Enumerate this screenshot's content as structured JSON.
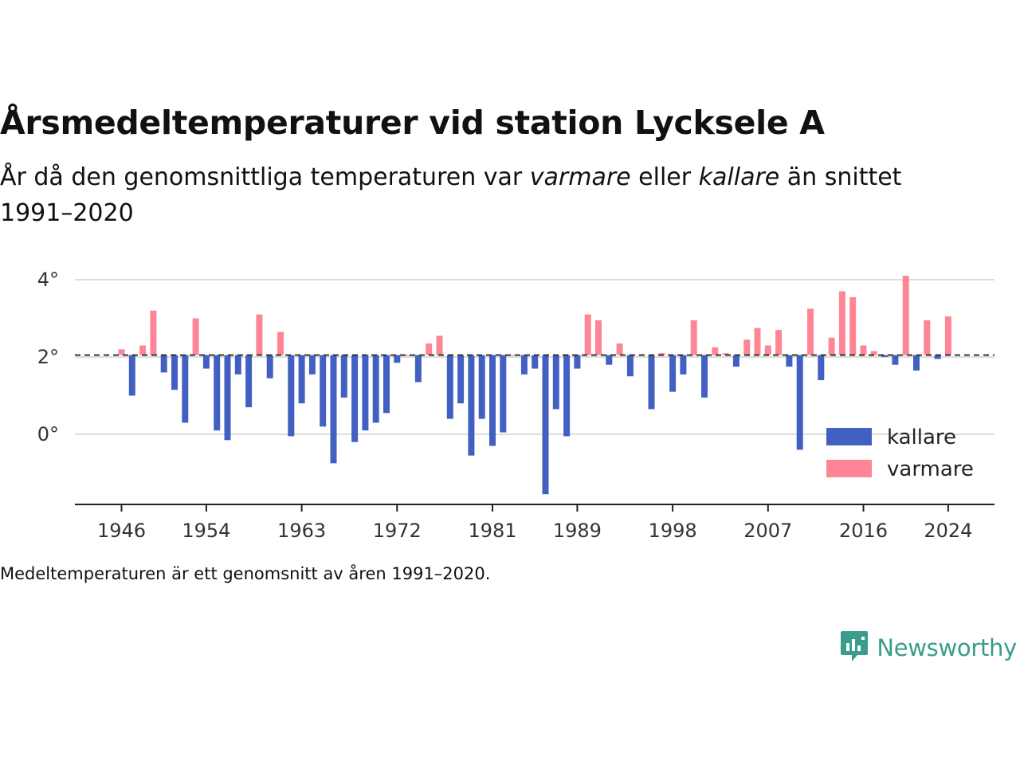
{
  "title": "Årsmedeltemperaturer vid station Lycksele A",
  "subtitle": {
    "part1": "År då den genomsnittliga temperaturen var ",
    "warm_word": "varmare",
    "part2": " eller ",
    "cold_word": "kallare",
    "part3": " än snittet 1991–2020"
  },
  "footnote": "Medeltemperaturen är ett genomsnitt av åren 1991–2020.",
  "brand": {
    "name": "Newsworthy",
    "icon": "newsworthy-logo-icon"
  },
  "colors": {
    "cold": "#4260c2",
    "warm": "#fe8595",
    "reference": "#333333",
    "grid": "#dddddd",
    "brand": "#3a9c8c"
  },
  "chart_data": {
    "type": "bar",
    "x_ticks": [
      "1946",
      "1954",
      "1963",
      "1972",
      "1981",
      "1989",
      "1998",
      "2007",
      "2016",
      "2024"
    ],
    "y_ticks": [
      "0°",
      "2°",
      "4°"
    ],
    "ylim": [
      -1.8,
      4.2
    ],
    "reference_value": 2.05,
    "legend": [
      {
        "label": "kallare",
        "series": "cold"
      },
      {
        "label": "varmare",
        "series": "warm"
      }
    ],
    "legend_position": "bottom-right",
    "x": [
      1946,
      1947,
      1948,
      1949,
      1950,
      1951,
      1952,
      1953,
      1954,
      1955,
      1956,
      1957,
      1958,
      1959,
      1960,
      1961,
      1962,
      1963,
      1964,
      1965,
      1966,
      1967,
      1968,
      1969,
      1970,
      1971,
      1972,
      1973,
      1974,
      1975,
      1976,
      1977,
      1978,
      1979,
      1980,
      1981,
      1982,
      1983,
      1984,
      1985,
      1986,
      1987,
      1988,
      1989,
      1990,
      1991,
      1992,
      1993,
      1994,
      1995,
      1996,
      1997,
      1998,
      1999,
      2000,
      2001,
      2002,
      2003,
      2004,
      2005,
      2006,
      2007,
      2008,
      2009,
      2010,
      2011,
      2012,
      2013,
      2014,
      2015,
      2016,
      2017,
      2018,
      2019,
      2020,
      2021,
      2022,
      2023,
      2024
    ],
    "values": [
      2.2,
      1.0,
      2.3,
      3.2,
      1.6,
      1.15,
      0.3,
      3.0,
      1.7,
      0.1,
      -0.15,
      1.55,
      0.7,
      3.1,
      1.45,
      2.65,
      -0.05,
      0.8,
      1.55,
      0.2,
      -0.75,
      0.95,
      -0.2,
      0.1,
      0.3,
      0.55,
      1.85,
      2.05,
      1.35,
      2.35,
      2.55,
      0.4,
      0.8,
      -0.55,
      0.4,
      -0.3,
      0.05,
      2.05,
      1.55,
      1.7,
      -1.55,
      0.65,
      -0.05,
      1.7,
      3.1,
      2.95,
      1.8,
      2.35,
      1.5,
      2.05,
      0.65,
      2.1,
      1.1,
      1.55,
      2.95,
      0.95,
      2.25,
      2.1,
      1.75,
      2.45,
      2.75,
      2.3,
      2.7,
      1.75,
      -0.4,
      3.25,
      1.4,
      2.5,
      3.7,
      3.55,
      2.3,
      2.15,
      2.0,
      1.8,
      4.1,
      1.65,
      2.95,
      1.95,
      3.05
    ]
  }
}
